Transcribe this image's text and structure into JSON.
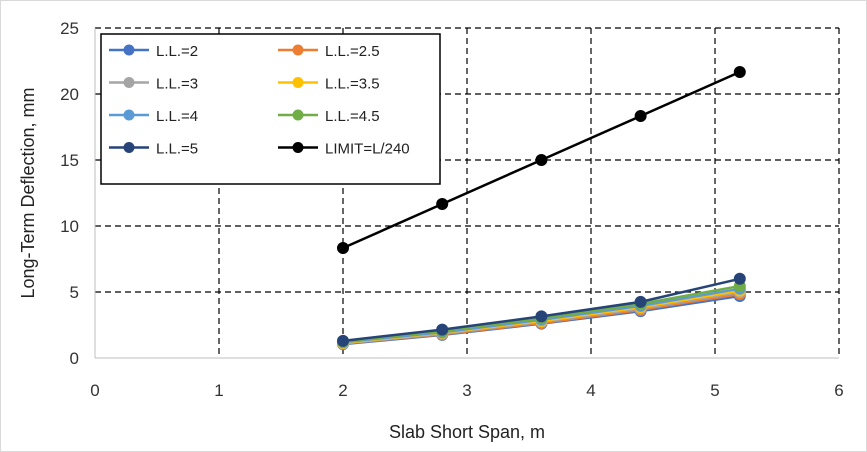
{
  "chart_data": {
    "type": "line",
    "title": "",
    "xlabel": "Slab Short Span, m",
    "ylabel": "Long-Term Deflection, mm",
    "xlim": [
      0,
      6
    ],
    "ylim": [
      0,
      25
    ],
    "xticks": [
      0,
      1,
      2,
      3,
      4,
      5,
      6
    ],
    "yticks": [
      0,
      5,
      10,
      15,
      20,
      25
    ],
    "grid": "dashed",
    "legend_position": "top-left",
    "x": [
      2.0,
      2.8,
      3.6,
      4.4,
      5.2
    ],
    "series": [
      {
        "name": "L.L.=2",
        "color": "#4472C4",
        "values": [
          1.05,
          1.75,
          2.6,
          3.55,
          4.7
        ]
      },
      {
        "name": "L.L.=2.5",
        "color": "#ED7D31",
        "values": [
          1.1,
          1.8,
          2.65,
          3.65,
          4.85
        ]
      },
      {
        "name": "L.L.=3",
        "color": "#A5A5A5",
        "values": [
          1.1,
          1.85,
          2.75,
          3.75,
          5.0
        ]
      },
      {
        "name": "L.L.=3.5",
        "color": "#FFC000",
        "values": [
          1.15,
          1.9,
          2.8,
          3.85,
          5.1
        ]
      },
      {
        "name": "L.L.=4",
        "color": "#5B9BD5",
        "values": [
          1.2,
          1.95,
          2.9,
          3.95,
          5.25
        ]
      },
      {
        "name": "L.L.=4.5",
        "color": "#70AD47",
        "values": [
          1.25,
          2.05,
          3.0,
          4.1,
          5.45
        ]
      },
      {
        "name": "L.L.=5",
        "color": "#264478",
        "values": [
          1.3,
          2.15,
          3.15,
          4.25,
          6.0
        ]
      },
      {
        "name": "LIMIT=L/240",
        "color": "#000000",
        "values": [
          8.33,
          11.67,
          15.0,
          18.33,
          21.67
        ]
      }
    ]
  }
}
